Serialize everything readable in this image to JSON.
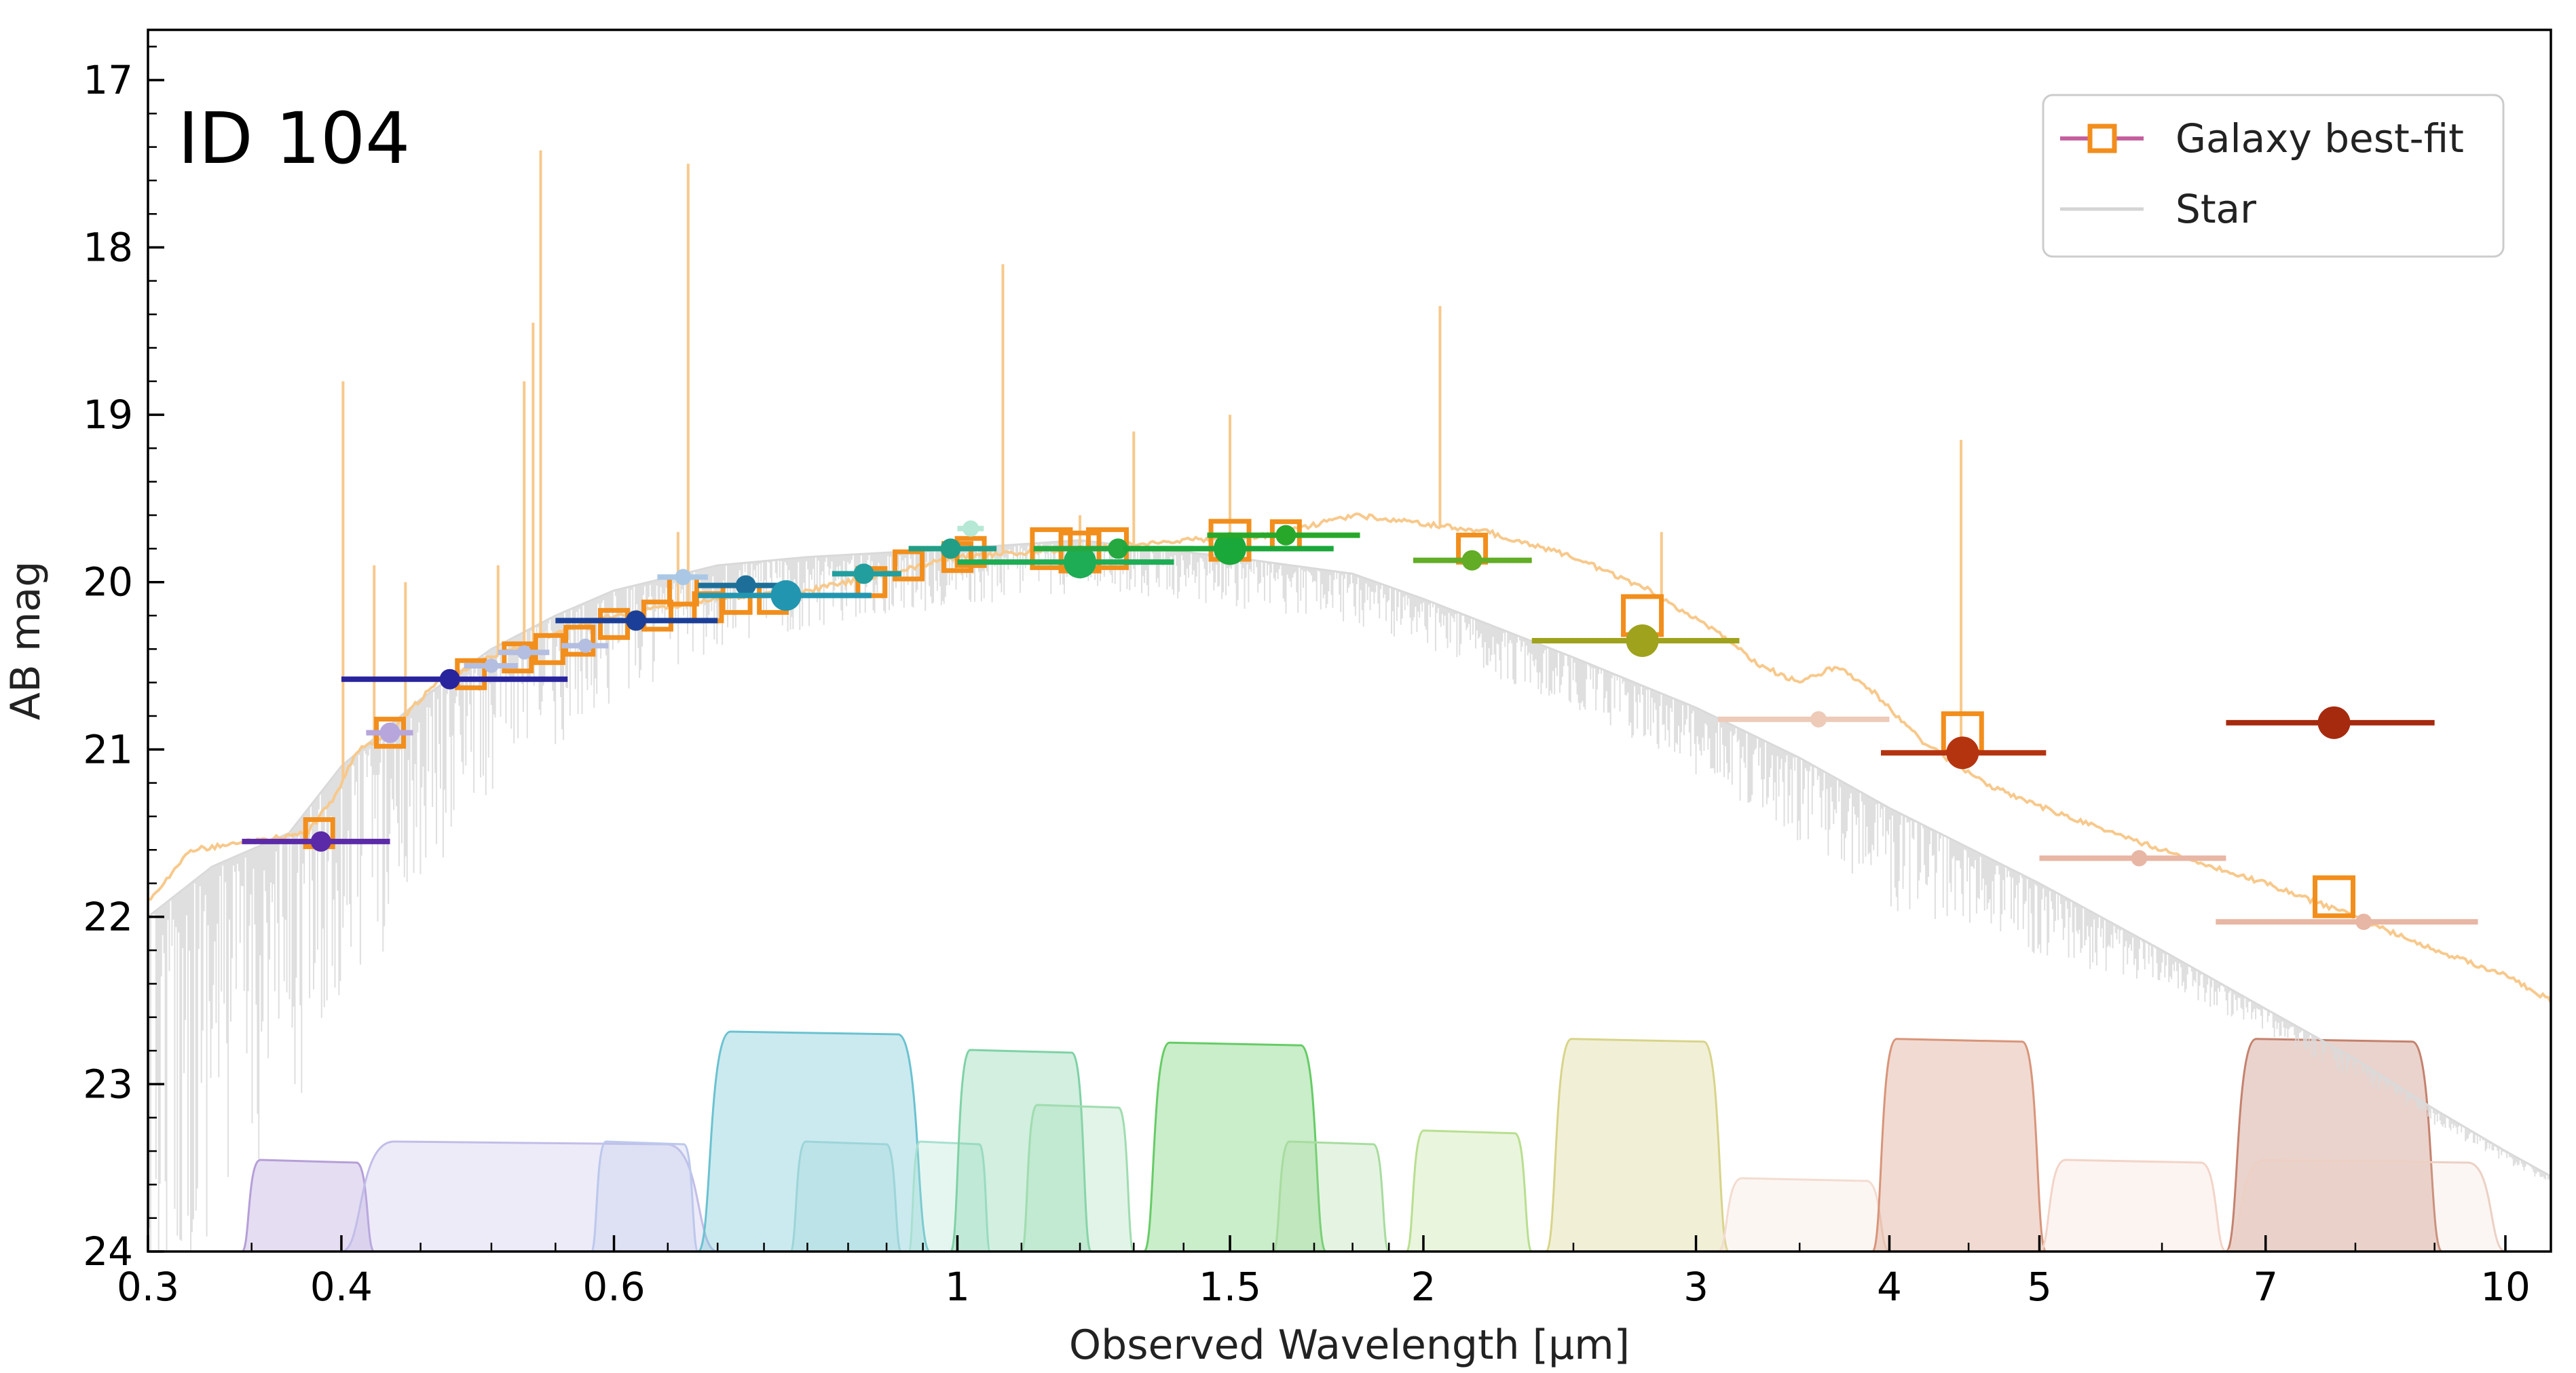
{
  "chart_data": {
    "type": "scatter",
    "title": "ID 104",
    "xlabel": "Observed Wavelength [μm]",
    "ylabel": "AB mag",
    "xscale": "log",
    "xlim": [
      0.3,
      10.7
    ],
    "ylim": [
      24,
      16.7
    ],
    "y_inverted": true,
    "x_ticks": [
      {
        "value": 0.3,
        "label": "0.3"
      },
      {
        "value": 0.4,
        "label": "0.4"
      },
      {
        "value": 0.6,
        "label": "0.6"
      },
      {
        "value": 1,
        "label": "1"
      },
      {
        "value": 1.5,
        "label": "1.5"
      },
      {
        "value": 2,
        "label": "2"
      },
      {
        "value": 3,
        "label": "3"
      },
      {
        "value": 4,
        "label": "4"
      },
      {
        "value": 5,
        "label": "5"
      },
      {
        "value": 7,
        "label": "7"
      },
      {
        "value": 10,
        "label": "10"
      }
    ],
    "y_ticks": [
      {
        "value": 17,
        "label": "17"
      },
      {
        "value": 18,
        "label": "18"
      },
      {
        "value": 19,
        "label": "19"
      },
      {
        "value": 20,
        "label": "20"
      },
      {
        "value": 21,
        "label": "21"
      },
      {
        "value": 22,
        "label": "22"
      },
      {
        "value": 23,
        "label": "23"
      },
      {
        "value": 24,
        "label": "24"
      }
    ],
    "legend": {
      "position": "top-right",
      "entries": [
        {
          "label": "Galaxy best-fit",
          "marker": "open-square",
          "color": "#f28e1c",
          "line_color": "#c4609e"
        },
        {
          "label": "Star",
          "marker": "line",
          "color": "#d4d4d4"
        }
      ]
    },
    "colors": {
      "galaxy_sed": "#f7c98c",
      "star_sed": "#d9d9d9",
      "model_marker": "#f28e1c"
    },
    "galaxy_sed": {
      "continuum": [
        [
          0.3,
          21.9
        ],
        [
          0.32,
          21.6
        ],
        [
          0.35,
          21.55
        ],
        [
          0.38,
          21.5
        ],
        [
          0.395,
          21.3
        ],
        [
          0.41,
          21.0
        ],
        [
          0.43,
          20.9
        ],
        [
          0.46,
          20.6
        ],
        [
          0.5,
          20.45
        ],
        [
          0.55,
          20.3
        ],
        [
          0.6,
          20.2
        ],
        [
          0.65,
          20.15
        ],
        [
          0.7,
          20.1
        ],
        [
          0.8,
          20.05
        ],
        [
          0.9,
          19.95
        ],
        [
          1.0,
          19.85
        ],
        [
          1.2,
          19.8
        ],
        [
          1.4,
          19.75
        ],
        [
          1.6,
          19.72
        ],
        [
          1.8,
          19.6
        ],
        [
          2.0,
          19.65
        ],
        [
          2.2,
          19.7
        ],
        [
          2.5,
          19.85
        ],
        [
          2.8,
          20.05
        ],
        [
          3.1,
          20.3
        ],
        [
          3.3,
          20.5
        ],
        [
          3.5,
          20.6
        ],
        [
          3.7,
          20.5
        ],
        [
          3.9,
          20.65
        ],
        [
          4.2,
          20.95
        ],
        [
          4.6,
          21.2
        ],
        [
          5.2,
          21.4
        ],
        [
          6.0,
          21.6
        ],
        [
          7.0,
          21.8
        ],
        [
          8.0,
          22.0
        ],
        [
          9.0,
          22.2
        ],
        [
          10.0,
          22.35
        ],
        [
          10.7,
          22.5
        ]
      ],
      "emission_lines": [
        [
          0.372,
          21.5
        ],
        [
          0.401,
          18.8
        ],
        [
          0.42,
          19.9
        ],
        [
          0.44,
          20.0
        ],
        [
          0.5,
          20.5
        ],
        [
          0.505,
          19.9
        ],
        [
          0.525,
          18.8
        ],
        [
          0.532,
          18.45
        ],
        [
          0.538,
          17.42
        ],
        [
          0.66,
          19.7
        ],
        [
          0.67,
          17.5
        ],
        [
          1.07,
          18.1
        ],
        [
          1.2,
          19.6
        ],
        [
          1.3,
          19.1
        ],
        [
          1.5,
          19.0
        ],
        [
          2.05,
          18.35
        ],
        [
          2.85,
          19.7
        ],
        [
          4.45,
          19.15
        ]
      ]
    },
    "star_sed": {
      "continuum": [
        [
          0.3,
          22.0
        ],
        [
          0.33,
          21.7
        ],
        [
          0.37,
          21.5
        ],
        [
          0.4,
          21.1
        ],
        [
          0.45,
          20.7
        ],
        [
          0.5,
          20.4
        ],
        [
          0.55,
          20.2
        ],
        [
          0.6,
          20.05
        ],
        [
          0.7,
          19.9
        ],
        [
          0.8,
          19.85
        ],
        [
          1.0,
          19.8
        ],
        [
          1.2,
          19.75
        ],
        [
          1.5,
          19.85
        ],
        [
          1.8,
          19.95
        ],
        [
          2.0,
          20.1
        ],
        [
          2.5,
          20.45
        ],
        [
          3.0,
          20.75
        ],
        [
          3.5,
          21.05
        ],
        [
          4.0,
          21.35
        ],
        [
          5.0,
          21.8
        ],
        [
          6.0,
          22.2
        ],
        [
          7.0,
          22.55
        ],
        [
          8.0,
          22.85
        ],
        [
          9.0,
          23.15
        ],
        [
          10.0,
          23.4
        ],
        [
          10.7,
          23.55
        ]
      ],
      "absorption_depth": [
        [
          0.3,
          2.5
        ],
        [
          0.4,
          1.5
        ],
        [
          0.5,
          0.9
        ],
        [
          0.7,
          0.5
        ],
        [
          1.0,
          0.35
        ],
        [
          1.5,
          0.3
        ],
        [
          2.5,
          0.3
        ],
        [
          3.0,
          0.4
        ],
        [
          4.0,
          0.6
        ],
        [
          5.0,
          0.45
        ],
        [
          6.0,
          0.2
        ],
        [
          10.7,
          0.05
        ]
      ]
    },
    "model_photometry": [
      [
        0.387,
        21.5
      ],
      [
        0.43,
        20.9
      ],
      [
        0.485,
        20.55
      ],
      [
        0.52,
        20.45
      ],
      [
        0.545,
        20.4
      ],
      [
        0.57,
        20.35
      ],
      [
        0.6,
        20.25
      ],
      [
        0.64,
        20.2
      ],
      [
        0.665,
        20.05
      ],
      [
        0.69,
        20.15
      ],
      [
        0.72,
        20.1
      ],
      [
        0.76,
        20.1
      ],
      [
        0.88,
        20.0
      ],
      [
        0.93,
        19.9
      ],
      [
        1.0,
        19.85
      ],
      [
        1.02,
        19.82
      ],
      [
        1.15,
        19.8
      ],
      [
        1.2,
        19.82
      ],
      [
        1.25,
        19.8
      ],
      [
        1.5,
        19.75
      ],
      [
        1.63,
        19.72
      ],
      [
        2.15,
        19.8
      ],
      [
        2.77,
        20.2
      ],
      [
        4.46,
        20.9
      ],
      [
        7.75,
        21.88
      ]
    ],
    "observed_photometry": [
      {
        "x": 0.388,
        "y": 21.55,
        "xerr": [
          0.345,
          0.43
        ],
        "color": "#5b2aa8",
        "size": 1
      },
      {
        "x": 0.43,
        "y": 20.9,
        "xerr": [
          0.415,
          0.445
        ],
        "color": "#b7a6db",
        "size": 1
      },
      {
        "x": 0.47,
        "y": 20.58,
        "xerr": [
          0.4,
          0.56
        ],
        "color": "#28249e",
        "size": 1
      },
      {
        "x": 0.5,
        "y": 20.5,
        "xerr": [
          0.48,
          0.52
        ],
        "color": "#b3bee0",
        "size": 0.7
      },
      {
        "x": 0.525,
        "y": 20.42,
        "xerr": [
          0.505,
          0.545
        ],
        "color": "#b3bee0",
        "size": 0.7
      },
      {
        "x": 0.575,
        "y": 20.38,
        "xerr": [
          0.555,
          0.595
        ],
        "color": "#b3bee0",
        "size": 0.7
      },
      {
        "x": 0.62,
        "y": 20.23,
        "xerr": [
          0.55,
          0.7
        ],
        "color": "#1b3f98",
        "size": 1
      },
      {
        "x": 0.665,
        "y": 19.97,
        "xerr": [
          0.64,
          0.69
        ],
        "color": "#aac8e6",
        "size": 0.8
      },
      {
        "x": 0.73,
        "y": 20.02,
        "xerr": [
          0.68,
          0.78
        ],
        "color": "#1d6f99",
        "size": 1
      },
      {
        "x": 0.775,
        "y": 20.08,
        "xerr": [
          0.68,
          0.88
        ],
        "color": "#2296b0",
        "size": 1.5
      },
      {
        "x": 0.87,
        "y": 19.95,
        "xerr": [
          0.83,
          0.92
        ],
        "color": "#229e9e",
        "size": 1
      },
      {
        "x": 0.99,
        "y": 19.8,
        "xerr": [
          0.93,
          1.06
        ],
        "color": "#229e86",
        "size": 1
      },
      {
        "x": 1.02,
        "y": 19.68,
        "xerr": [
          1.0,
          1.04
        ],
        "color": "#b5e8d5",
        "size": 0.8
      },
      {
        "x": 1.2,
        "y": 19.88,
        "xerr": [
          1.0,
          1.38
        ],
        "color": "#1ead55",
        "size": 1.6
      },
      {
        "x": 1.27,
        "y": 19.8,
        "xerr": [
          1.12,
          1.42
        ],
        "color": "#25a840",
        "size": 1
      },
      {
        "x": 1.5,
        "y": 19.8,
        "xerr": [
          1.28,
          1.75
        ],
        "color": "#1aa83a",
        "size": 1.6
      },
      {
        "x": 1.63,
        "y": 19.72,
        "xerr": [
          1.45,
          1.82
        ],
        "color": "#28a82a",
        "size": 1
      },
      {
        "x": 2.15,
        "y": 19.87,
        "xerr": [
          1.97,
          2.35
        ],
        "color": "#62ac26",
        "size": 1
      },
      {
        "x": 2.77,
        "y": 20.35,
        "xerr": [
          2.35,
          3.2
        ],
        "color": "#9fa21c",
        "size": 1.6
      },
      {
        "x": 3.6,
        "y": 20.82,
        "xerr": [
          3.1,
          4.0
        ],
        "color": "#edcbb8",
        "size": 0.8
      },
      {
        "x": 4.46,
        "y": 21.02,
        "xerr": [
          3.95,
          5.05
        ],
        "color": "#b53410",
        "size": 1.6
      },
      {
        "x": 5.8,
        "y": 21.65,
        "xerr": [
          5.0,
          6.6
        ],
        "color": "#e8b6a4",
        "size": 0.8
      },
      {
        "x": 7.75,
        "y": 20.84,
        "xerr": [
          6.6,
          9.0
        ],
        "color": "#a62a0e",
        "size": 1.6
      },
      {
        "x": 8.1,
        "y": 22.03,
        "xerr": [
          6.5,
          9.6
        ],
        "color": "#e8b6a4",
        "size": 0.8
      }
    ],
    "filters": [
      {
        "x0": 0.345,
        "x1": 0.42,
        "peak": 0.25,
        "color": "#b59fd8",
        "alpha": 0.35
      },
      {
        "x0": 0.4,
        "x1": 0.7,
        "peak": 0.3,
        "color": "#c2bde8",
        "alpha": 0.3
      },
      {
        "x0": 0.58,
        "x1": 0.68,
        "peak": 0.3,
        "color": "#bcc8ec",
        "alpha": 0.3
      },
      {
        "x0": 0.68,
        "x1": 0.96,
        "peak": 0.6,
        "color": "#6ac2d0",
        "alpha": 0.35
      },
      {
        "x0": 0.78,
        "x1": 0.92,
        "peak": 0.3,
        "color": "#9dd5d8",
        "alpha": 0.3
      },
      {
        "x0": 0.93,
        "x1": 1.05,
        "peak": 0.3,
        "color": "#a8e0d0",
        "alpha": 0.3
      },
      {
        "x0": 0.99,
        "x1": 1.22,
        "peak": 0.55,
        "color": "#7fd2a6",
        "alpha": 0.35
      },
      {
        "x0": 1.1,
        "x1": 1.3,
        "peak": 0.4,
        "color": "#a0dcb0",
        "alpha": 0.3
      },
      {
        "x0": 1.32,
        "x1": 1.73,
        "peak": 0.57,
        "color": "#66cc66",
        "alpha": 0.35
      },
      {
        "x0": 1.6,
        "x1": 1.9,
        "peak": 0.3,
        "color": "#a8dca0",
        "alpha": 0.3
      },
      {
        "x0": 1.95,
        "x1": 2.35,
        "peak": 0.33,
        "color": "#b8df90",
        "alpha": 0.3
      },
      {
        "x0": 2.4,
        "x1": 3.15,
        "peak": 0.58,
        "color": "#d8d48a",
        "alpha": 0.35
      },
      {
        "x0": 3.1,
        "x1": 4.0,
        "peak": 0.2,
        "color": "#f3dcd0",
        "alpha": 0.25
      },
      {
        "x0": 3.9,
        "x1": 5.05,
        "peak": 0.58,
        "color": "#d8957a",
        "alpha": 0.35
      },
      {
        "x0": 5.0,
        "x1": 6.6,
        "peak": 0.25,
        "color": "#f3d4c8",
        "alpha": 0.25
      },
      {
        "x0": 6.6,
        "x1": 9.1,
        "peak": 0.58,
        "color": "#c4826e",
        "alpha": 0.35
      },
      {
        "x0": 6.6,
        "x1": 10.0,
        "peak": 0.25,
        "color": "#ecd0c4",
        "alpha": 0.2
      }
    ]
  }
}
